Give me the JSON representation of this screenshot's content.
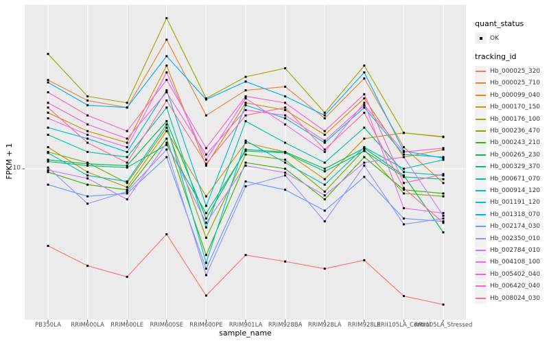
{
  "chart_data": {
    "type": "line",
    "title": "",
    "xlabel": "sample_name",
    "ylabel": "FPKM + 1",
    "y_scale": "log10",
    "y_ticks": [
      {
        "label": "10",
        "value": 10
      }
    ],
    "ylim": [
      0.95,
      130
    ],
    "grid": "vertical category gridlines + horizontal line at y=10, white on gray panel",
    "legend_position": "right",
    "panel_bg": "#EBEBEB",
    "grid_color": "#FFFFFF",
    "point_color": "#000000",
    "tick_color": "#333333",
    "categories": [
      "PB350LA",
      "RRIM600LA",
      "RRIM600LE",
      "RRIM600SE",
      "RRIM600PE",
      "RRIM901LA",
      "RRIM928BA",
      "RRIM928LA",
      "RRIM928LE",
      "RRII105LA_Control",
      "RRII105LA_Stressed"
    ],
    "series": [
      {
        "name": "Hb_000025_320",
        "color": "#F8766D",
        "values": [
          3.0,
          2.2,
          1.85,
          3.6,
          1.38,
          2.6,
          2.35,
          2.1,
          2.4,
          1.37,
          1.2
        ]
      },
      {
        "name": "Hb_000025_710",
        "color": "#EA8331",
        "values": [
          40,
          29,
          26,
          75,
          23,
          34,
          36,
          22,
          41,
          14,
          8
        ]
      },
      {
        "name": "Hb_000099_040",
        "color": "#D89000",
        "values": [
          24,
          18,
          15,
          50,
          10.5,
          28,
          25,
          17,
          30,
          12,
          13.5
        ]
      },
      {
        "name": "Hb_000170_150",
        "color": "#C09B00",
        "values": [
          14,
          9.5,
          7.5,
          18,
          6.5,
          15,
          13,
          8.5,
          16,
          17.5,
          16.5
        ]
      },
      {
        "name": "Hb_000176_100",
        "color": "#A3A500",
        "values": [
          60,
          31,
          28,
          105,
          30,
          42,
          48,
          24,
          50,
          17.5,
          16.4
        ]
      },
      {
        "name": "Hb_000236_470",
        "color": "#7CAE00",
        "values": [
          13,
          11,
          8,
          19,
          3.4,
          12.5,
          11.5,
          7,
          13.5,
          6.8,
          6.5
        ]
      },
      {
        "name": "Hb_000243_210",
        "color": "#39B600",
        "values": [
          9.5,
          7.8,
          7.2,
          16,
          2.6,
          11,
          10,
          6.2,
          12,
          7.2,
          6.8
        ]
      },
      {
        "name": "Hb_000265_230",
        "color": "#00BB4E",
        "values": [
          11.5,
          10.8,
          10.5,
          21,
          4.6,
          13.5,
          13,
          10,
          13.8,
          9,
          3.7
        ]
      },
      {
        "name": "Hb_000329_370",
        "color": "#00BF7D",
        "values": [
          11.2,
          10.5,
          10.2,
          14.5,
          5.0,
          13.2,
          12.8,
          9.6,
          13.2,
          8.8,
          8.5
        ]
      },
      {
        "name": "Hb_000671_070",
        "color": "#00C1A3",
        "values": [
          17,
          13,
          12,
          26,
          4.0,
          21,
          15,
          11,
          19,
          9.5,
          9
        ]
      },
      {
        "name": "Hb_000914_120",
        "color": "#00BFC4",
        "values": [
          12.8,
          9,
          8.2,
          20,
          2.3,
          15.5,
          11,
          7.8,
          14,
          10,
          11.5
        ]
      },
      {
        "name": "Hb_001191_120",
        "color": "#00BBDA",
        "values": [
          19,
          16,
          13,
          34,
          5.6,
          27,
          22,
          15,
          26,
          12.5,
          12
        ]
      },
      {
        "name": "Hb_001318_070",
        "color": "#00B0F6",
        "values": [
          38.5,
          27,
          26,
          58,
          29.5,
          39,
          31,
          23,
          45,
          13.2,
          11.8
        ]
      },
      {
        "name": "Hb_002174_030",
        "color": "#619CFF",
        "values": [
          7.8,
          6.5,
          6.8,
          12,
          2.1,
          8.2,
          7.2,
          5.2,
          8.8,
          4.6,
          4.4
        ]
      },
      {
        "name": "Hb_002350_010",
        "color": "#9590FF",
        "values": [
          10.2,
          5.8,
          7.0,
          13.5,
          1.9,
          7.6,
          9.0,
          4.4,
          10.5,
          4.2,
          4.6
        ]
      },
      {
        "name": "Hb_002784_010",
        "color": "#C77CFF",
        "values": [
          9.8,
          8.6,
          6.2,
          15,
          4.3,
          10.5,
          9.4,
          6.6,
          11,
          12,
          4.8
        ]
      },
      {
        "name": "Hb_004108_100",
        "color": "#E76BF3",
        "values": [
          22,
          17,
          14,
          45,
          11.5,
          30,
          20,
          13,
          28,
          5.4,
          5.0
        ]
      },
      {
        "name": "Hb_005402_040",
        "color": "#FA62DB",
        "values": [
          28,
          20,
          16,
          33,
          12.5,
          25,
          23,
          15.5,
          27,
          13,
          13.8
        ]
      },
      {
        "name": "Hb_006420_040",
        "color": "#FF61C3",
        "values": [
          33,
          23,
          18,
          40,
          13.8,
          31,
          28,
          18,
          32,
          8,
          9.2
        ]
      },
      {
        "name": "Hb_008024_030",
        "color": "#FF6A98",
        "values": [
          26,
          15,
          11,
          29,
          10.8,
          23,
          26,
          13.5,
          24,
          7.4,
          4.3
        ]
      }
    ]
  },
  "legend": {
    "quant_status": {
      "title": "quant_status",
      "items": [
        {
          "label": "OK"
        }
      ]
    },
    "tracking_id": {
      "title": "tracking_id"
    }
  }
}
